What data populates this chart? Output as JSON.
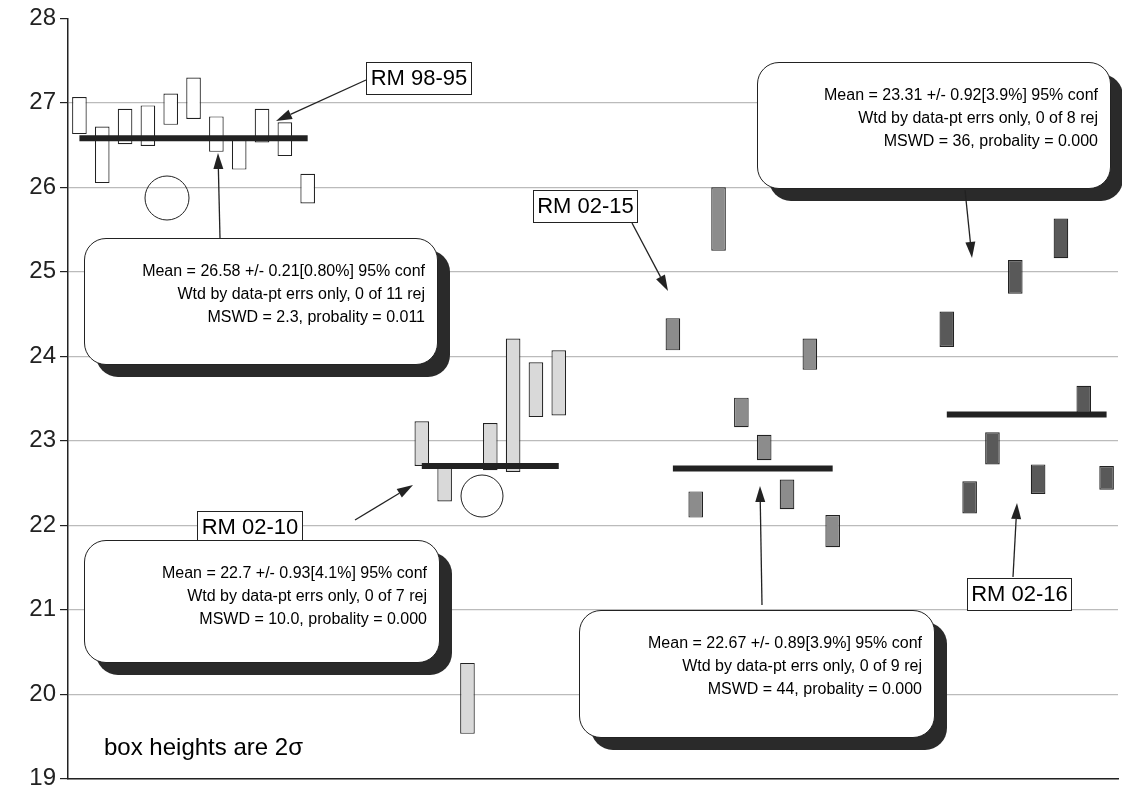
{
  "chart_data": {
    "type": "bar",
    "categories": [
      null,
      null,
      null,
      null,
      null,
      null,
      null,
      null,
      null,
      null,
      null,
      null,
      null,
      null,
      null,
      null,
      null,
      null,
      null,
      null,
      null,
      null,
      null,
      null,
      null,
      null,
      null,
      null,
      null,
      null,
      null,
      null,
      null,
      null,
      null,
      null,
      null,
      null,
      null,
      null,
      null,
      null,
      null,
      null,
      null,
      null
    ],
    "series": [
      {
        "base": [
          26.63,
          26.05,
          26.51,
          26.49,
          26.74,
          26.81,
          26.42,
          26.21,
          26.53,
          26.37,
          25.81,
          null,
          null,
          null,
          null,
          22.7,
          22.28,
          19.53,
          22.65,
          22.63,
          23.28,
          23.3,
          null,
          null,
          null,
          null,
          24.07,
          22.09,
          25.25,
          23.16,
          22.77,
          22.19,
          23.84,
          21.74,
          null,
          null,
          null,
          null,
          24.11,
          22.14,
          22.72,
          24.74,
          22.37,
          25.16,
          23.33,
          22.42
        ],
        "values": [
          0.44,
          0.67,
          0.42,
          0.48,
          0.37,
          0.49,
          0.42,
          0.36,
          0.4,
          0.4,
          0.35,
          null,
          null,
          null,
          null,
          0.53,
          0.43,
          0.84,
          0.56,
          1.58,
          0.65,
          0.77,
          null,
          null,
          null,
          null,
          0.38,
          0.31,
          0.75,
          0.35,
          0.3,
          0.35,
          0.37,
          0.38,
          null,
          null,
          null,
          null,
          0.42,
          0.38,
          0.38,
          0.4,
          0.35,
          0.47,
          0.32,
          0.28
        ],
        "colors": [
          "#ffffff",
          "#ffffff",
          "#ffffff",
          "#ffffff",
          "#ffffff",
          "#ffffff",
          "#ffffff",
          "#ffffff",
          "#ffffff",
          "#ffffff",
          "#ffffff",
          null,
          null,
          null,
          null,
          "#d9d9d9",
          "#d9d9d9",
          "#d9d9d9",
          "#d9d9d9",
          "#d9d9d9",
          "#d9d9d9",
          "#d9d9d9",
          null,
          null,
          null,
          null,
          "#8c8c8c",
          "#8c8c8c",
          "#8c8c8c",
          "#8c8c8c",
          "#8c8c8c",
          "#8c8c8c",
          "#8c8c8c",
          "#8c8c8c",
          null,
          null,
          null,
          null,
          "#595959",
          "#595959",
          "#595959",
          "#595959",
          "#595959",
          "#595959",
          "#595959",
          "#595959"
        ]
      },
      {
        "type": "line",
        "color": "#222222",
        "values": [
          26.58,
          26.58,
          26.58,
          26.58,
          26.58,
          26.58,
          26.58,
          26.58,
          26.58,
          26.58,
          26.58,
          null,
          null,
          null,
          null,
          null,
          null,
          null,
          null,
          null,
          null,
          null,
          null,
          null,
          null,
          null,
          null,
          null,
          null,
          null,
          null,
          null,
          null,
          null,
          null,
          null,
          null,
          null,
          null,
          null,
          null,
          null,
          null,
          null,
          null,
          null
        ]
      },
      {
        "type": "line",
        "color": "#222222",
        "values": [
          null,
          null,
          null,
          null,
          null,
          null,
          null,
          null,
          null,
          null,
          null,
          null,
          null,
          null,
          null,
          22.7,
          22.7,
          22.7,
          22.7,
          22.7,
          22.7,
          22.7,
          null,
          null,
          null,
          null,
          null,
          null,
          null,
          null,
          null,
          null,
          null,
          null,
          null,
          null,
          null,
          null,
          null,
          null,
          null,
          null,
          null,
          null,
          null,
          null
        ]
      },
      {
        "type": "line",
        "color": "#222222",
        "values": [
          null,
          null,
          null,
          null,
          null,
          null,
          null,
          null,
          null,
          null,
          null,
          null,
          null,
          null,
          null,
          null,
          null,
          null,
          null,
          null,
          null,
          null,
          null,
          null,
          null,
          null,
          22.67,
          22.67,
          22.67,
          22.67,
          22.67,
          22.67,
          22.67,
          22.67,
          null,
          null,
          null,
          null,
          null,
          null,
          null,
          null,
          null,
          null,
          null,
          null
        ]
      },
      {
        "type": "line",
        "color": "#222222",
        "values": [
          null,
          null,
          null,
          null,
          null,
          null,
          null,
          null,
          null,
          null,
          null,
          null,
          null,
          null,
          null,
          null,
          null,
          null,
          null,
          null,
          null,
          null,
          null,
          null,
          null,
          null,
          null,
          null,
          null,
          null,
          null,
          null,
          null,
          null,
          null,
          null,
          null,
          null,
          23.31,
          23.31,
          23.31,
          23.31,
          23.31,
          23.31,
          23.31,
          23.31
        ]
      }
    ],
    "ylim": [
      19,
      28
    ],
    "yticks": [
      19,
      20,
      21,
      22,
      23,
      24,
      25,
      26,
      27,
      28
    ],
    "grid": "y",
    "tick_labels": "y",
    "annotations": [
      "RM 98-95",
      "Mean = 26.58 +/- 0.21[0.80%] 95% conf\nWtd by data-pt errs only, 0 of 11 rej\nMSWD = 2.3, probality = 0.011",
      "RM 02-10",
      "Mean = 22.7 +/- 0.93[4.1%] 95% conf\nWtd by data-pt errs only, 0 of 7 rej\nMSWD = 10.0, probality = 0.000",
      "RM 02-15",
      "Mean = 22.67 +/- 0.89[3.9%] 95% conf\nWtd by data-pt errs only, 0 of 9 rej\nMSWD = 44, probality = 0.000",
      "Mean = 23.31 +/- 0.92[3.9%] 95% conf\nWtd by data-pt errs only, 0 of 8 rej\nMSWD = 36, probality = 0.000",
      "RM 02-16",
      "box heights are 2σ"
    ]
  }
}
